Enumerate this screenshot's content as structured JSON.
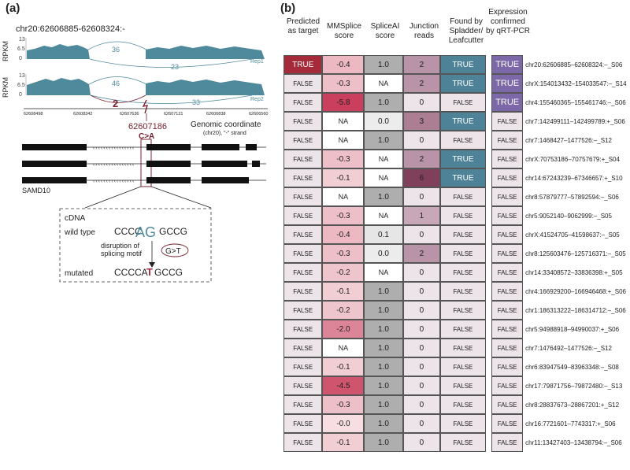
{
  "panel_a": {
    "label": "(a)",
    "region": "chr20:62606885-62608324:-",
    "ylabel": "RPKM",
    "ticks": [
      "13",
      "6.5",
      "0"
    ],
    "track1": {
      "name": "Rep1",
      "top_count": "36",
      "bottom_count": "23"
    },
    "track2": {
      "name": "Rep2",
      "top_count": "46",
      "bottom_count": "33",
      "mutant_count": "2"
    },
    "coords": [
      "62608498",
      "62608342",
      "62607636",
      "62607121",
      "62606838",
      "62606560"
    ],
    "axis_title": "Genomic coordinate",
    "axis_subtitle": "(chr20), \"-\" strand",
    "mut_position": "62607186",
    "mut_change": "C>A",
    "gene": "SAMD10",
    "cdna_label": "cDNA",
    "wild_type_label": "wild type",
    "wt_left": "CCCC",
    "wt_motif": "AG",
    "wt_right": "GCCG",
    "disruption_line1": "disruption of",
    "disruption_line2": "splicing motif",
    "badge": "G>T",
    "mutated_label": "mutated",
    "mut_left": "CCCCA",
    "mut_base": "T",
    "mut_right": "GCCG"
  },
  "panel_b": {
    "label": "(b)",
    "headers": {
      "predicted": "Predicted as target",
      "mmsplice": "MMSplice score",
      "spliceai": "SpliceAI score",
      "junction": "Junction reads",
      "found": "Found by Spladder/ Leafcutter",
      "expression": "Expression confirmed by qRT-PCR"
    },
    "colors": {
      "true_pred": "#a52a3a",
      "false_bg": "#ece4e8",
      "found_true": "#4e8297",
      "exp_true": "#7c68a8",
      "na_bg": "#ffffff",
      "spliceai_one": "#aeaeae"
    },
    "rows": [
      {
        "predicted": "TRUE",
        "mmsplice": "-0.4",
        "spliceai": "1.0",
        "junction": "2",
        "found": "TRUE",
        "expression": "TRUE",
        "label": "chr20:62606885–62608324:–_S06"
      },
      {
        "predicted": "FALSE",
        "mmsplice": "-0.3",
        "spliceai": "NA",
        "junction": "2",
        "found": "TRUE",
        "expression": "TRUE",
        "label": "chrX:154013432–154033547:–_S14"
      },
      {
        "predicted": "FALSE",
        "mmsplice": "-5.8",
        "spliceai": "1.0",
        "junction": "0",
        "found": "FALSE",
        "expression": "TRUE",
        "label": "chr4:155460365–155461746:–_S06"
      },
      {
        "predicted": "FALSE",
        "mmsplice": "NA",
        "spliceai": "0.0",
        "junction": "3",
        "found": "TRUE",
        "expression": "FALSE",
        "label": "chr7:142499111–142499789:+_S06"
      },
      {
        "predicted": "FALSE",
        "mmsplice": "NA",
        "spliceai": "1.0",
        "junction": "0",
        "found": "FALSE",
        "expression": "FALSE",
        "label": "chr7:1468427–1477526:–_S12"
      },
      {
        "predicted": "FALSE",
        "mmsplice": "-0.3",
        "spliceai": "NA",
        "junction": "2",
        "found": "TRUE",
        "expression": "FALSE",
        "label": "chrX:70753186–70757679:+_S04"
      },
      {
        "predicted": "FALSE",
        "mmsplice": "-0.1",
        "spliceai": "NA",
        "junction": "6",
        "found": "TRUE",
        "expression": "FALSE",
        "label": "chr14:67243239–67346657:+_S10"
      },
      {
        "predicted": "FALSE",
        "mmsplice": "NA",
        "spliceai": "1.0",
        "junction": "0",
        "found": "FALSE",
        "expression": "FALSE",
        "label": "chr8:57879777–57892594:–_S06"
      },
      {
        "predicted": "FALSE",
        "mmsplice": "-0.3",
        "spliceai": "NA",
        "junction": "1",
        "found": "FALSE",
        "expression": "FALSE",
        "label": "chr5:9052140–9062999:–_S05"
      },
      {
        "predicted": "FALSE",
        "mmsplice": "-0.4",
        "spliceai": "0.1",
        "junction": "0",
        "found": "FALSE",
        "expression": "FALSE",
        "label": "chrX:41524705–41598637:–_S05"
      },
      {
        "predicted": "FALSE",
        "mmsplice": "-0.3",
        "spliceai": "0.0",
        "junction": "2",
        "found": "FALSE",
        "expression": "FALSE",
        "label": "chr8:125603476–125716371:–_S05"
      },
      {
        "predicted": "FALSE",
        "mmsplice": "-0.2",
        "spliceai": "NA",
        "junction": "0",
        "found": "FALSE",
        "expression": "FALSE",
        "label": "chr14:33408572–33836398:+_S05"
      },
      {
        "predicted": "FALSE",
        "mmsplice": "-0.1",
        "spliceai": "1.0",
        "junction": "0",
        "found": "FALSE",
        "expression": "FALSE",
        "label": "chr4:166929200–166946468:+_S06"
      },
      {
        "predicted": "FALSE",
        "mmsplice": "-0.2",
        "spliceai": "1.0",
        "junction": "0",
        "found": "FALSE",
        "expression": "FALSE",
        "label": "chr1:186313222–186314712:–_S06"
      },
      {
        "predicted": "FALSE",
        "mmsplice": "-2.0",
        "spliceai": "1.0",
        "junction": "0",
        "found": "FALSE",
        "expression": "FALSE",
        "label": "chr5:94988918–94990037:+_S06"
      },
      {
        "predicted": "FALSE",
        "mmsplice": "NA",
        "spliceai": "1.0",
        "junction": "0",
        "found": "FALSE",
        "expression": "FALSE",
        "label": "chr7:1476492–1477526:–_S12"
      },
      {
        "predicted": "FALSE",
        "mmsplice": "-0.1",
        "spliceai": "1.0",
        "junction": "0",
        "found": "FALSE",
        "expression": "FALSE",
        "label": "chr6:83947549–83963348:–_S08"
      },
      {
        "predicted": "FALSE",
        "mmsplice": "-4.5",
        "spliceai": "1.0",
        "junction": "0",
        "found": "FALSE",
        "expression": "FALSE",
        "label": "chr17:79871756–79872480:–_S13"
      },
      {
        "predicted": "FALSE",
        "mmsplice": "-0.3",
        "spliceai": "1.0",
        "junction": "0",
        "found": "FALSE",
        "expression": "FALSE",
        "label": "chr8:28837673–28867201:+_S12"
      },
      {
        "predicted": "FALSE",
        "mmsplice": "-0.0",
        "spliceai": "1.0",
        "junction": "0",
        "found": "FALSE",
        "expression": "FALSE",
        "label": "chr16:7721601–7743317:+_S06"
      },
      {
        "predicted": "FALSE",
        "mmsplice": "-0.1",
        "spliceai": "1.0",
        "junction": "0",
        "found": "FALSE",
        "expression": "FALSE",
        "label": "chr11:13427403–13438794:–_S06"
      }
    ]
  }
}
